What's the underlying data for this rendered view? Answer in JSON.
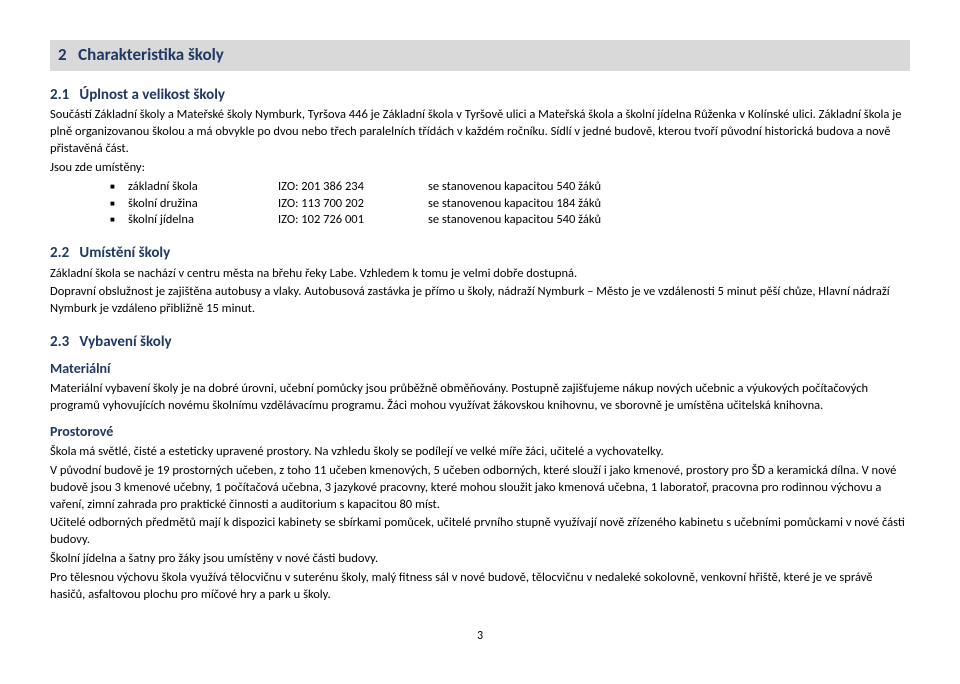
{
  "section": {
    "number": "2",
    "title": "Charakteristika školy"
  },
  "sub1": {
    "number": "2.1",
    "title": "Úplnost a velikost školy",
    "para1": "Součástí Základní školy a Mateřské školy Nymburk, Tyršova 446 je Základní škola v Tyršově ulici a Mateřská škola a školní jídelna Růženka v Kolínské ulici. Základní škola je plně organizovanou školou a má obvykle po dvou nebo třech paralelních třídách v každém ročníku. Sídlí v jedné budově, kterou tvoří původní historická budova a nově přistavěná část.",
    "para2": "Jsou zde umístěny:",
    "items": [
      {
        "name": "základní škola",
        "izo": "IZO: 201 386 234",
        "capacity": "se stanovenou kapacitou 540 žáků"
      },
      {
        "name": "školní družina",
        "izo": "IZO: 113 700 202",
        "capacity": "se stanovenou kapacitou 184 žáků"
      },
      {
        "name": "školní jídelna",
        "izo": "IZO: 102 726 001",
        "capacity": "se stanovenou kapacitou 540 žáků"
      }
    ]
  },
  "sub2": {
    "number": "2.2",
    "title": "Umístění školy",
    "para1": "Základní škola se nachází v centru města na břehu řeky Labe. Vzhledem k tomu je velmi dobře dostupná.",
    "para2": "Dopravní obslužnost je zajištěna autobusy a vlaky. Autobusová zastávka je přímo u školy, nádraží Nymburk – Město je ve vzdálenosti 5 minut pěší chůze, Hlavní nádraží Nymburk je vzdáleno přibližně 15 minut."
  },
  "sub3": {
    "number": "2.3",
    "title": "Vybavení školy",
    "material_heading": "Materiální",
    "material_text": "Materiální vybavení školy je na dobré úrovni, učební pomůcky jsou průběžně obměňovány. Postupně zajišťujeme nákup nových učebnic a výukových počítačových programů vyhovujících novému školnímu vzdělávacímu programu. Žáci mohou využívat žákovskou knihovnu, ve sborovně je umístěna učitelská knihovna.",
    "prostorove_heading": "Prostorové",
    "prostorove_p1": "Škola má světlé, čisté a esteticky upravené prostory. Na vzhledu školy se podílejí ve velké míře žáci, učitelé a vychovatelky.",
    "prostorove_p2": "V původní budově je 19 prostorných učeben, z toho 11 učeben kmenových, 5 učeben odborných, které slouží i jako kmenové, prostory pro ŠD a keramická dílna. V nové budově jsou 3 kmenové učebny, 1 počítačová učebna, 3 jazykové pracovny, které mohou sloužit jako kmenová učebna, 1 laboratoř, pracovna pro rodinnou výchovu a vaření, zimní zahrada pro praktické činnosti a auditorium s kapacitou 80 míst.",
    "prostorove_p3": "Učitelé odborných předmětů mají k dispozici kabinety se sbírkami pomůcek, učitelé prvního stupně využívají nově zřízeného kabinetu s učebními pomůckami v nové části budovy.",
    "prostorove_p4": "Školní jídelna a šatny pro žáky jsou umístěny v nové části budovy.",
    "prostorove_p5": "Pro tělesnou výchovu škola využívá tělocvičnu v suterénu školy, malý fitness sál v nové budově, tělocvičnu v nedaleké sokolovně, venkovní hřiště, které je ve správě hasičů, asfaltovou plochu pro míčové hry a park u školy."
  },
  "page_number": "3",
  "colors": {
    "heading_bg": "#d9d9d9",
    "heading_fg": "#1f3864",
    "text": "#000000",
    "background": "#ffffff"
  }
}
